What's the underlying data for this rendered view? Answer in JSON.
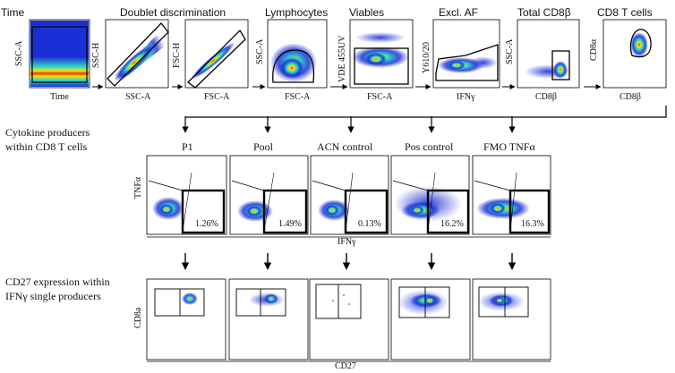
{
  "gating_row": {
    "panels": [
      {
        "title": "Time",
        "y_label": "SSC-A",
        "x_label": "Time"
      },
      {
        "title": "Doublet discrimination",
        "y_label": "SSC-H",
        "x_label": "SSC-A"
      },
      {
        "title": "",
        "y_label": "FSC-H",
        "x_label": "FSC-A"
      },
      {
        "title": "Lymphocytes",
        "y_label": "SSC-A",
        "x_label": "FSC-A"
      },
      {
        "title": "Viables",
        "y_label": "VDE 455UV",
        "x_label": "FSC-A"
      },
      {
        "title": "Excl. AF",
        "y_label": "Y610/20",
        "x_label": "IFNγ"
      },
      {
        "title": "Total CD8β",
        "y_label": "SSC-A",
        "x_label": "CD8β"
      },
      {
        "title": "CD8 T cells",
        "y_label": "CD8α",
        "x_label": "CD8β"
      }
    ]
  },
  "cytokine_section": {
    "heading_line1": "Cytokine producers",
    "heading_line2": "within CD8 T cells",
    "y_label": "TNFα",
    "x_label": "IFNγ",
    "panels": [
      {
        "title": "P1",
        "percent": "1.26%"
      },
      {
        "title": "Pool",
        "percent": "1.49%"
      },
      {
        "title": "ACN control",
        "percent": "0.13%"
      },
      {
        "title": "Pos control",
        "percent": "16.2%"
      },
      {
        "title": "FMO TNFα",
        "percent": "16.3%"
      }
    ]
  },
  "cd27_section": {
    "heading_line1": "CD27 expression within",
    "heading_line2": "IFNγ single producers",
    "y_label": "CD8a",
    "x_label": "CD27"
  },
  "colors": {
    "heat_low": "#1a2fd6",
    "heat_mid": "#2fd9c8",
    "heat_high": "#ffe100",
    "heat_peak": "#e8361b",
    "gate": "#000000"
  }
}
